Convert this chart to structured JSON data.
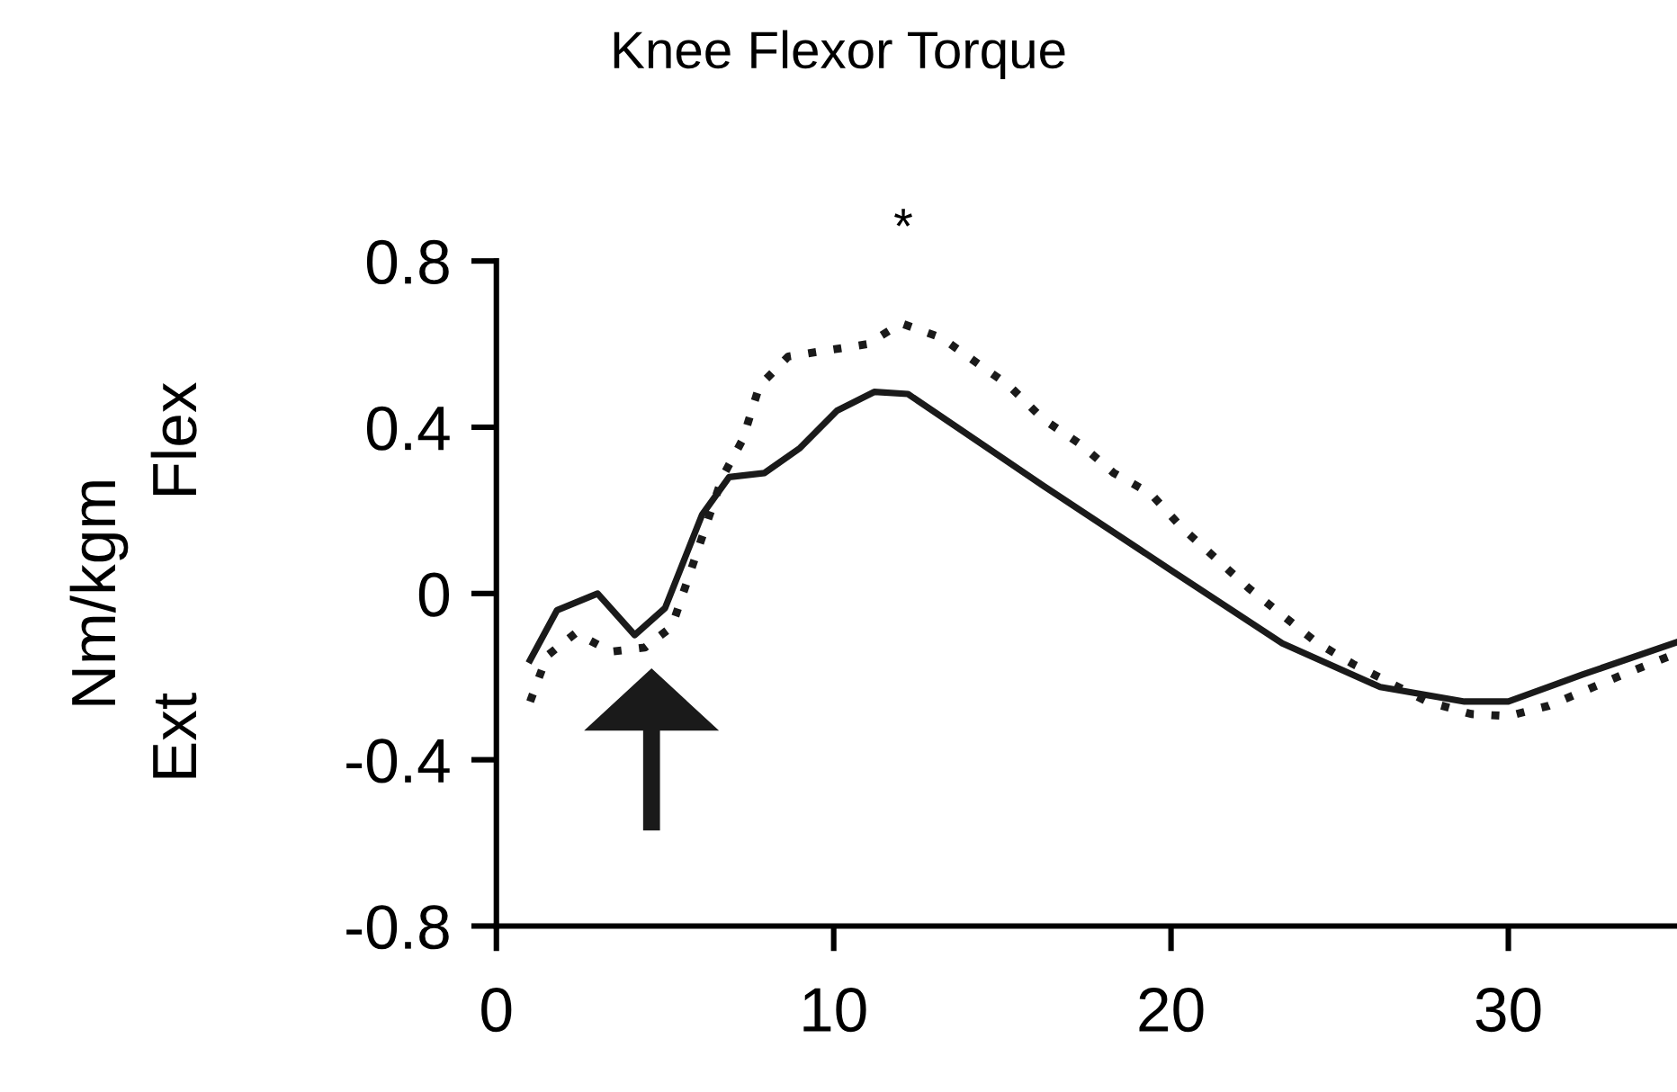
{
  "chart_data": {
    "type": "line",
    "title": "Knee Flexor Torque",
    "ylabel": "Nm/kgm",
    "xlim": [
      0,
      35
    ],
    "ylim": [
      -0.8,
      0.8
    ],
    "xticks": [
      0,
      10,
      20,
      30
    ],
    "yticks": [
      -0.8,
      -0.4,
      0,
      0.4,
      0.8
    ],
    "grid": false,
    "legend": false,
    "annotations": [
      "*",
      "Flex",
      "Ext"
    ],
    "series": [
      {
        "color": "#1a1a1a",
        "line_style": "solid",
        "x": [
          1.0,
          1.8,
          3.0,
          4.1,
          5.0,
          6.1,
          6.9,
          7.95,
          9.0,
          10.1,
          11.2,
          12.2,
          16.2,
          20.0,
          23.3,
          26.2,
          28.7,
          30.0,
          32.2,
          35.0
        ],
        "values": [
          -0.16,
          -0.04,
          0.0,
          -0.1,
          -0.035,
          0.19,
          0.28,
          0.29,
          0.35,
          0.44,
          0.485,
          0.48,
          0.26,
          0.056,
          -0.12,
          -0.225,
          -0.26,
          -0.26,
          -0.195,
          -0.117
        ]
      },
      {
        "color": "#1a1a1a",
        "line_style": "dotted",
        "x": [
          1.0,
          1.5,
          2.35,
          3.4,
          4.4,
          5.2,
          6.7,
          7.3,
          7.8,
          8.65,
          9.8,
          11.0,
          12.0,
          13.2,
          15.2,
          16.2,
          17.3,
          18.3,
          19.4,
          20.3,
          22.3,
          24.3,
          25.4,
          27.6,
          28.9,
          30.0,
          31.2,
          33.4,
          34.8
        ],
        "values": [
          -0.26,
          -0.15,
          -0.095,
          -0.14,
          -0.13,
          -0.08,
          0.28,
          0.37,
          0.5,
          0.57,
          0.585,
          0.6,
          0.65,
          0.615,
          0.5,
          0.42,
          0.36,
          0.29,
          0.24,
          0.16,
          0.013,
          -0.117,
          -0.17,
          -0.26,
          -0.29,
          -0.295,
          -0.27,
          -0.195,
          -0.15
        ]
      }
    ]
  }
}
